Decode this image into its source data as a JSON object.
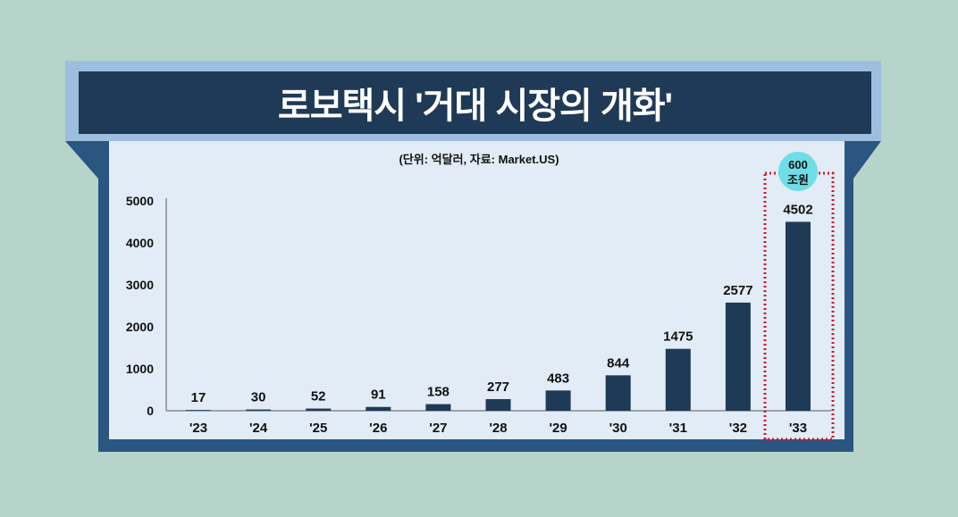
{
  "title": "로보택시 '거대 시장의 개화'",
  "chart_data": {
    "type": "bar",
    "title": "로보택시 '거대 시장의 개화'",
    "subtitle": "(단위: 억달러, 자료: Market.US)",
    "categories": [
      "'23",
      "'24",
      "'25",
      "'26",
      "'27",
      "'28",
      "'29",
      "'30",
      "'31",
      "'32",
      "'33"
    ],
    "values": [
      17,
      30,
      52,
      91,
      158,
      277,
      483,
      844,
      1475,
      2577,
      4502
    ],
    "yticks": [
      "0",
      "1000",
      "2000",
      "3000",
      "4000",
      "5000"
    ],
    "ylim": [
      0,
      5000
    ],
    "xlabel": "",
    "ylabel": "",
    "annotation": {
      "line1": "600",
      "line2": "조원"
    },
    "colors": {
      "bar": "#1f3a57",
      "highlight_border": "#d0172a",
      "badge": "#6fdde8"
    }
  }
}
